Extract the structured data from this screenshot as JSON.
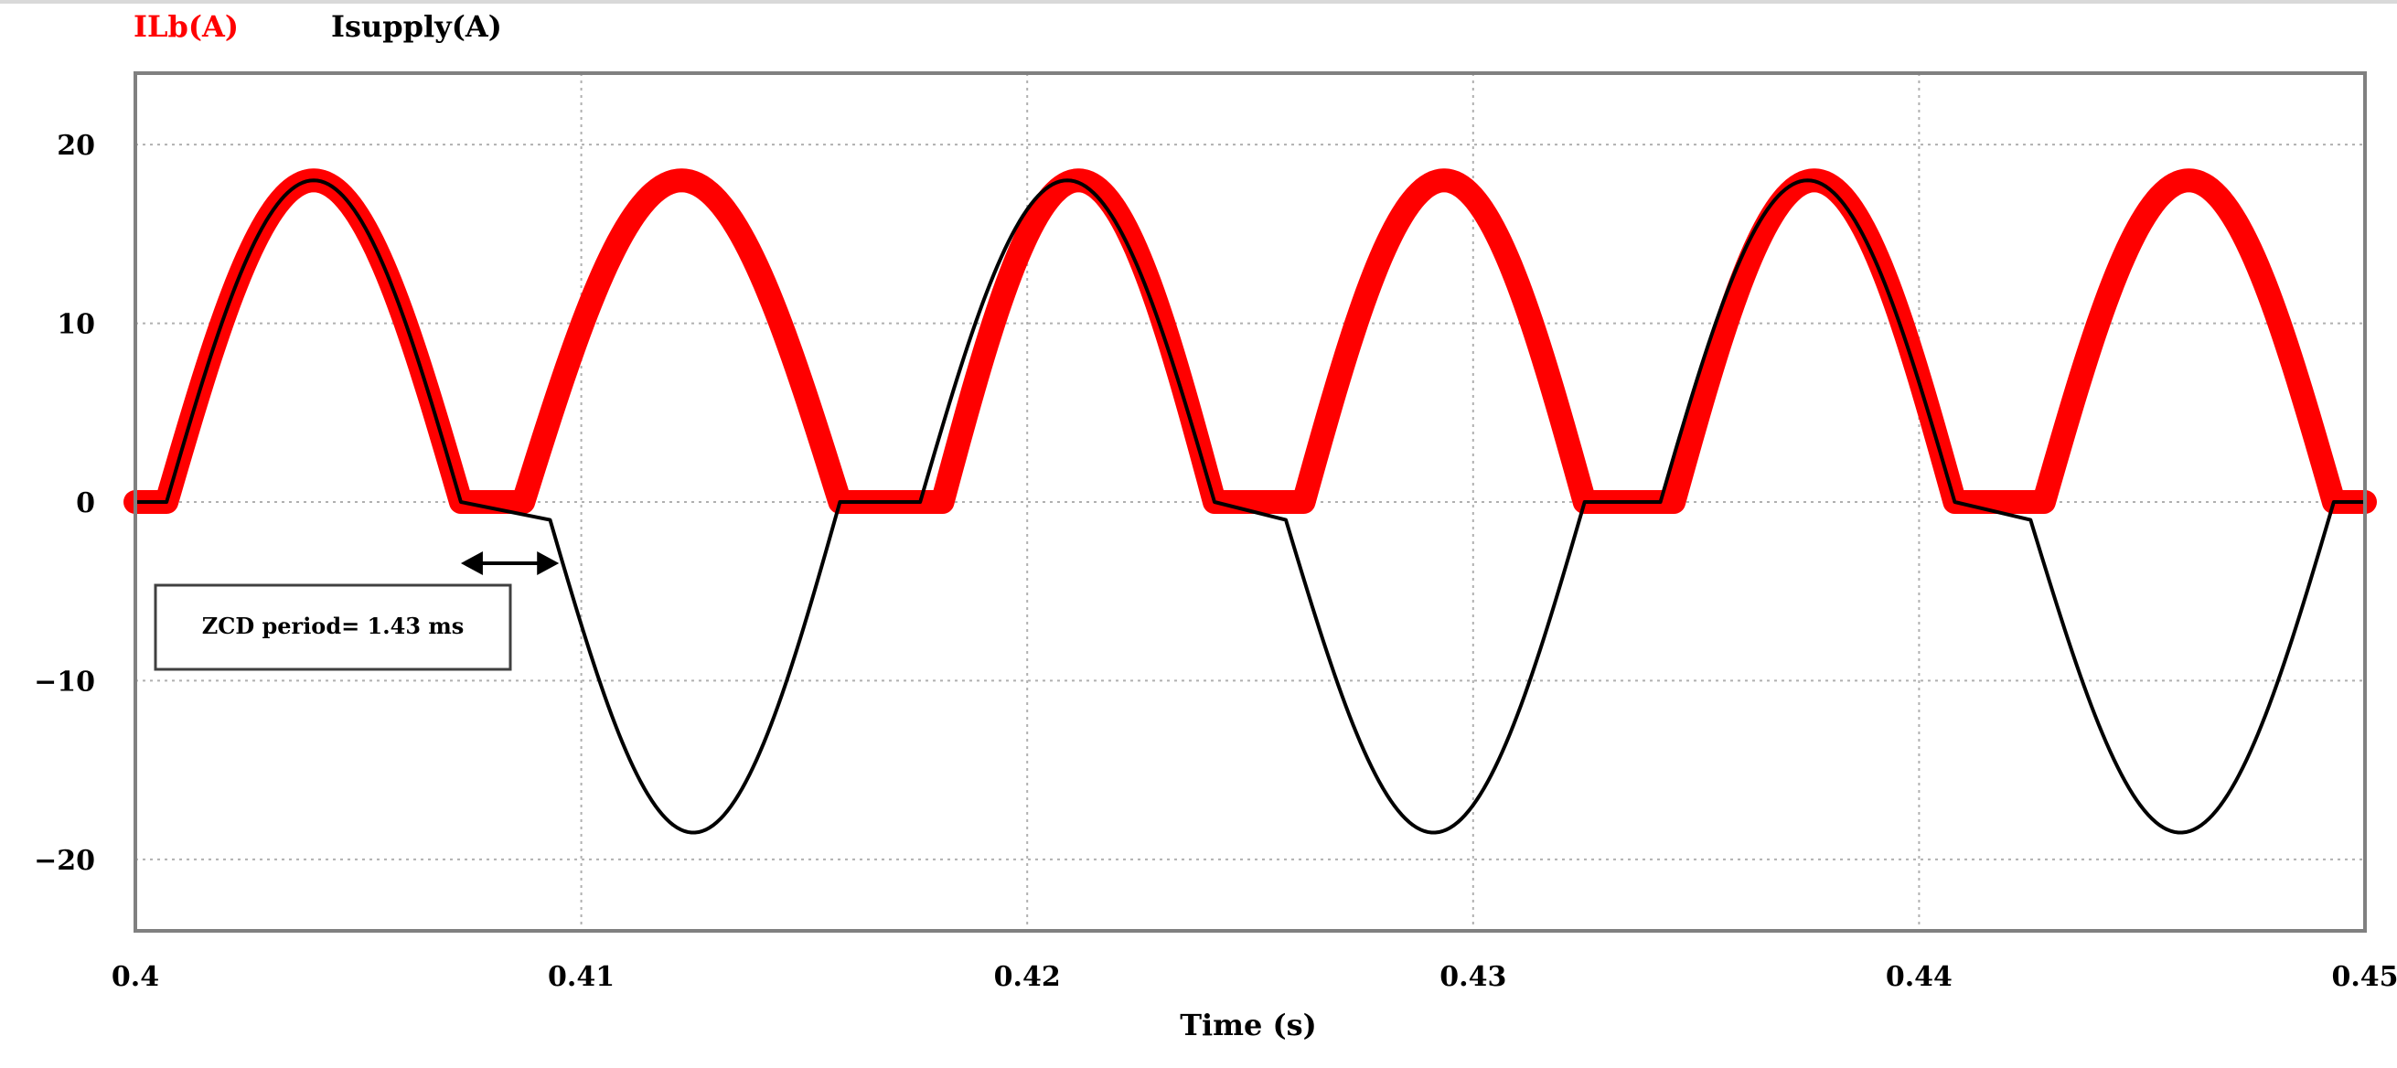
{
  "chart_data": {
    "type": "line",
    "xlabel": "Time (s)",
    "ylabel": "",
    "xlim": [
      0.4,
      0.45
    ],
    "ylim": [
      -24,
      24
    ],
    "x_ticks": [
      "0.4",
      "0.41",
      "0.42",
      "0.43",
      "0.44",
      "0.45"
    ],
    "y_ticks": [
      "20",
      "10",
      "0",
      "−10",
      "−20"
    ],
    "y_tick_values": [
      20,
      10,
      0,
      -10,
      -20
    ],
    "x_tick_values": [
      0.4,
      0.41,
      0.42,
      0.43,
      0.44,
      0.45
    ],
    "grid": true,
    "legend_position": "top-left",
    "series": [
      {
        "name": "ILb(A)",
        "color": "#ff0000",
        "peak": 18,
        "period": 0.0167,
        "description_shape": "rectified sinusoid humps with ripple band",
        "x": [
          0.4,
          0.4007,
          0.4037,
          0.4073,
          0.408,
          0.4087,
          0.4122,
          0.4158,
          0.4174,
          0.4181,
          0.4206,
          0.4242,
          0.4255,
          0.4262,
          0.429,
          0.4325,
          0.4338,
          0.4345,
          0.4373,
          0.4408,
          0.4421,
          0.4428,
          0.4458,
          0.4493,
          0.45
        ],
        "y": [
          0,
          0,
          18,
          0,
          0,
          0,
          18,
          0,
          0,
          0,
          18,
          0,
          0,
          0,
          18,
          0,
          0,
          0,
          18,
          0,
          0,
          0,
          18,
          0,
          0
        ]
      },
      {
        "name": "Isupply(A)",
        "color": "#000000",
        "peak": 18,
        "x": [
          0.4,
          0.4007,
          0.4037,
          0.4073,
          0.4093,
          0.4122,
          0.4158,
          0.4174,
          0.4176,
          0.4206,
          0.4242,
          0.4258,
          0.429,
          0.4325,
          0.434,
          0.4342,
          0.4373,
          0.4408,
          0.4425,
          0.4458,
          0.4493,
          0.45
        ],
        "y": [
          0,
          0,
          18,
          0,
          -1,
          -18,
          0,
          0,
          0,
          18,
          0,
          -1,
          -18,
          0,
          0,
          0,
          18,
          0,
          -1,
          -18,
          0,
          0
        ]
      }
    ],
    "annotation": {
      "text": "ZCD period= 1.43 ms",
      "arrow_from": 0.4073,
      "arrow_to": 0.4095
    }
  },
  "legend": {
    "ilb_label": "ILb(A)",
    "isupply_label": "Isupply(A)",
    "ilb_color": "#ff0000",
    "isupply_color": "#000000"
  }
}
